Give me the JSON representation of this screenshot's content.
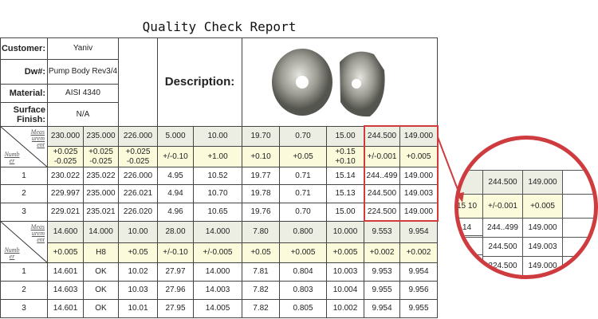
{
  "title": "Quality Check Report",
  "info": {
    "customer_label": "Customer:",
    "customer": "Yaniv",
    "dw_label": "Dw#:",
    "dw": "Pump Body Rev3/4",
    "material_label": "Material:",
    "material": "AISI 4340",
    "finish_label": "Surface Finish:",
    "finish": "N/A",
    "description_label": "Description:"
  },
  "corner": {
    "measurement": "Meas urem ent",
    "number": "Numb er"
  },
  "colors": {
    "measurement_row": "#ecede3",
    "tolerance_row": "#fbfbdc",
    "highlight": "#d23b3b"
  },
  "blocks": [
    {
      "nominal": [
        "230.000",
        "235.000",
        "226.000",
        "5.000",
        "10.00",
        "19.70",
        "0.70",
        "15.00",
        "244.500",
        "149.000"
      ],
      "tolerance": [
        "+0.025 -0.025",
        "+0.025 -0.025",
        "+0.025 -0.025",
        "+/-0.10",
        "+1.00",
        "+0.10",
        "+0.05",
        "+0.15 +0.10",
        "+/-0.001",
        "+0.005"
      ],
      "rows": [
        {
          "n": "1",
          "v": [
            "230.022",
            "235.022",
            "226.000",
            "4.95",
            "10.52",
            "19.77",
            "0.71",
            "15.14",
            "244..499",
            "149.000"
          ]
        },
        {
          "n": "2",
          "v": [
            "229.997",
            "235.000",
            "226.021",
            "4.94",
            "10.70",
            "19.78",
            "0.71",
            "15.13",
            "244.500",
            "149.003"
          ]
        },
        {
          "n": "3",
          "v": [
            "229.021",
            "235.021",
            "226.020",
            "4.96",
            "10.65",
            "19.76",
            "0.70",
            "15.00",
            "224.500",
            "149.000"
          ]
        }
      ]
    },
    {
      "nominal": [
        "14.600",
        "14.000",
        "10.00",
        "28.00",
        "14.000",
        "7.80",
        "0.800",
        "10.000",
        "9.553",
        "9.954"
      ],
      "tolerance": [
        "+0.005",
        "H8",
        "+0.05",
        "+/-0.10",
        "+/-0.005",
        "+0.05",
        "+0.005",
        "+0.005",
        "+0.002",
        "+0.002"
      ],
      "rows": [
        {
          "n": "1",
          "v": [
            "14.601",
            "OK",
            "10.02",
            "27.97",
            "14.000",
            "7.81",
            "0.804",
            "10.003",
            "9.953",
            "9.954"
          ]
        },
        {
          "n": "2",
          "v": [
            "14.603",
            "OK",
            "10.03",
            "27.96",
            "14.003",
            "7.82",
            "0.803",
            "10.004",
            "9.955",
            "9.956"
          ]
        },
        {
          "n": "3",
          "v": [
            "14.601",
            "OK",
            "10.01",
            "27.95",
            "14.005",
            "7.82",
            "0.805",
            "10.002",
            "9.954",
            "9.955"
          ]
        }
      ]
    }
  ],
  "magnifier": {
    "partial_left": [
      "15 10",
      "14",
      "3"
    ],
    "nominal": [
      "244.500",
      "149.000"
    ],
    "tolerance": [
      "+/-0.001",
      "+0.005"
    ],
    "rows": [
      [
        "244..499",
        "149.000"
      ],
      [
        "244.500",
        "149.003"
      ],
      [
        "224.500",
        "149.000"
      ]
    ]
  }
}
